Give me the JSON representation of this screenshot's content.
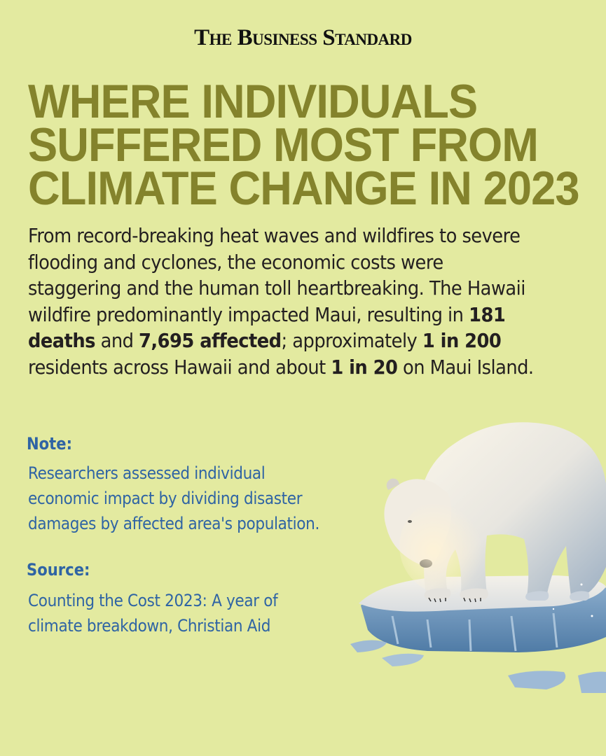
{
  "brand": "The Business Standard",
  "headline": {
    "lines": [
      "WHERE INDIVIDUALS",
      "SUFFERED MOST FROM",
      "CLIMATE CHANGE IN 2023"
    ]
  },
  "intro": {
    "text_1": "From record-breaking heat waves and wildfires to severe flooding and cyclones, the economic costs were staggering and the human toll heartbreaking. The Hawaii wildfire predominantly impacted Maui, resulting in ",
    "deaths": "181 deaths",
    "text_2": " and ",
    "affected": "7,695 affected",
    "text_3": "; approximately ",
    "ratio_hawaii": "1 in 200",
    "text_4": " residents across Hawaii and about ",
    "ratio_maui": "1 in 20",
    "text_5": " on Maui Island."
  },
  "note": {
    "label": "Note:",
    "lines": [
      "Researchers assessed individual",
      "economic impact by dividing disaster",
      "damages by affected area's population."
    ]
  },
  "source": {
    "label": "Source:",
    "lines": [
      "Counting the Cost 2023: A year of",
      "climate breakdown, Christian Aid"
    ]
  },
  "illustration": {
    "subject": "polar-bear-on-ice-floe"
  },
  "colors": {
    "background": "#e3eaa0",
    "headline": "#84832c",
    "body": "#231f20",
    "accent_blue": "#2f64a4"
  }
}
